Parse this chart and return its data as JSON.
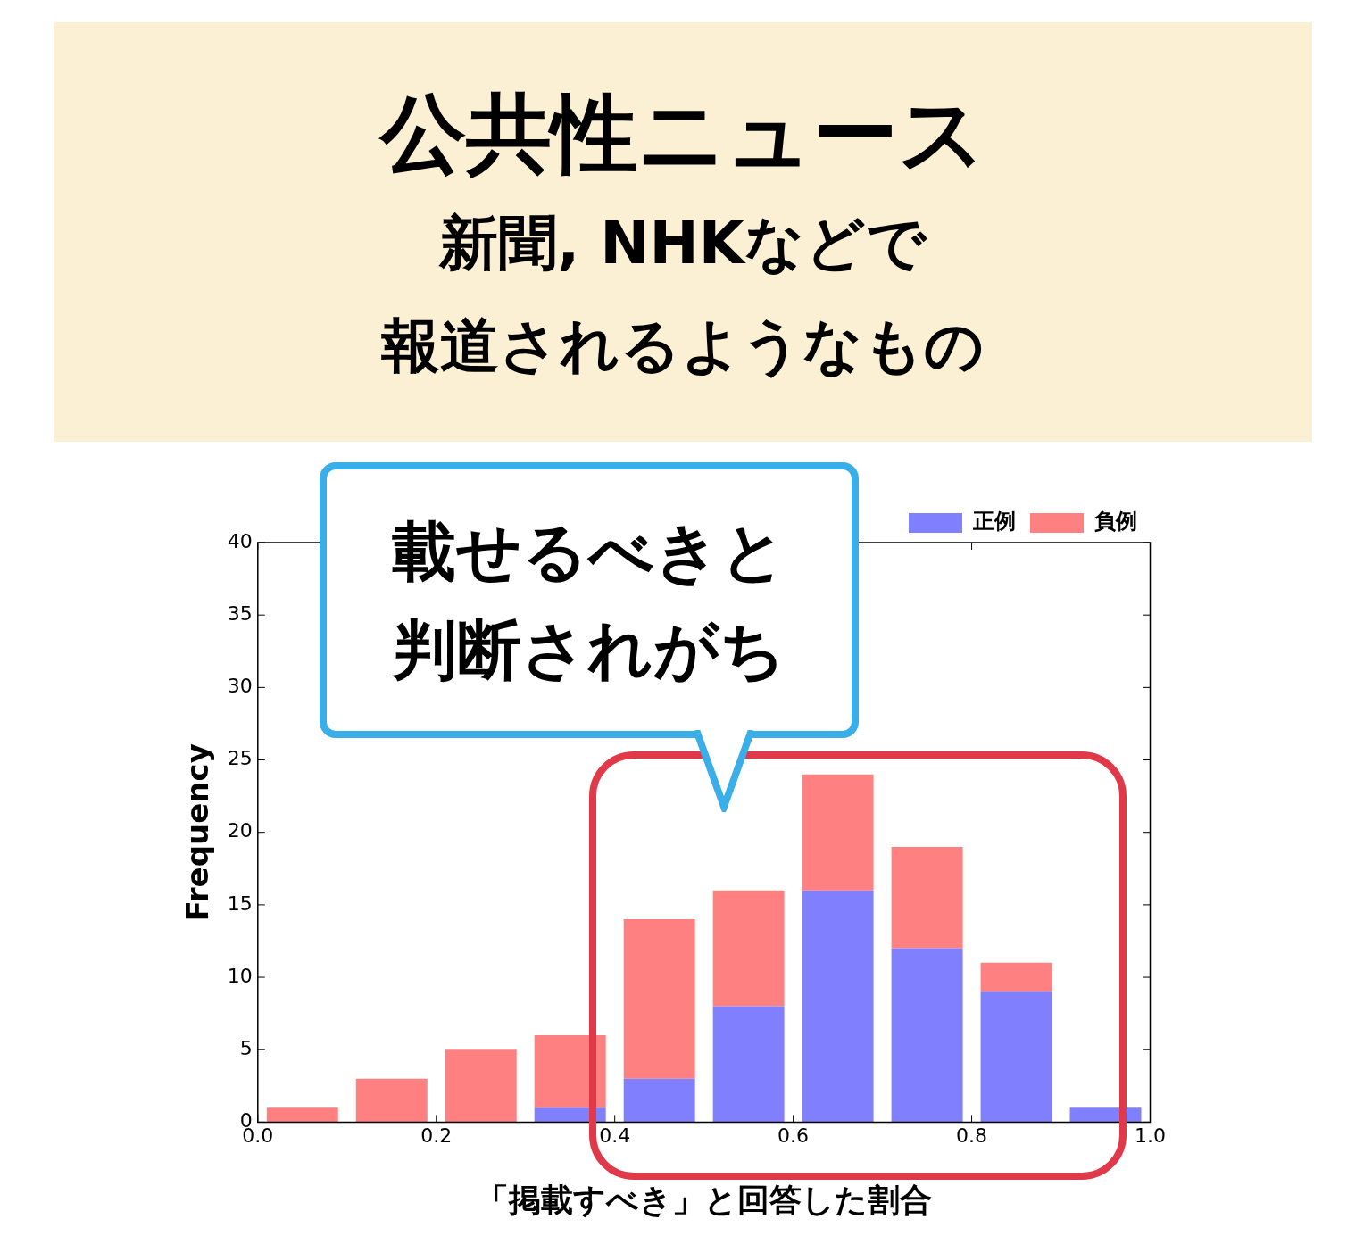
{
  "chart_data": {
    "type": "bar",
    "title": "公共性ニュース",
    "subtitle": "新聞, NHKなどで",
    "xlabel": "「掲載すべき」と回答した割合",
    "ylabel": "Frequency",
    "x": [
      0.05,
      0.15,
      0.25,
      0.35,
      0.45,
      0.55,
      0.65,
      0.75,
      0.85,
      0.95
    ],
    "series": [
      {
        "name": "正例",
        "color": "#8080ff",
        "values": [
          0,
          0,
          0,
          1,
          3,
          8,
          16,
          12,
          9,
          1
        ]
      },
      {
        "name": "負例",
        "color": "#ff8080",
        "values": [
          1,
          3,
          5,
          5,
          11,
          8,
          8,
          7,
          2,
          0
        ]
      }
    ],
    "stacked": true,
    "xlim": [
      0,
      1
    ],
    "xticks": [
      {
        "value": 0,
        "label": "0.0"
      },
      {
        "value": 0.2,
        "label": "0.2"
      },
      {
        "value": 0.4,
        "label": "0.4"
      },
      {
        "value": 0.6,
        "label": "0.6"
      },
      {
        "value": 0.8,
        "label": "0.8"
      },
      {
        "value": 1,
        "label": "1.0"
      }
    ],
    "ylim": [
      0,
      40
    ],
    "yticks": [
      0,
      5,
      10,
      15,
      20,
      25,
      30,
      35,
      40
    ],
    "grid": false,
    "legend": "top right",
    "annotations": [
      "報道されるようなもの",
      "載せるべきと",
      "判断されがち"
    ]
  }
}
